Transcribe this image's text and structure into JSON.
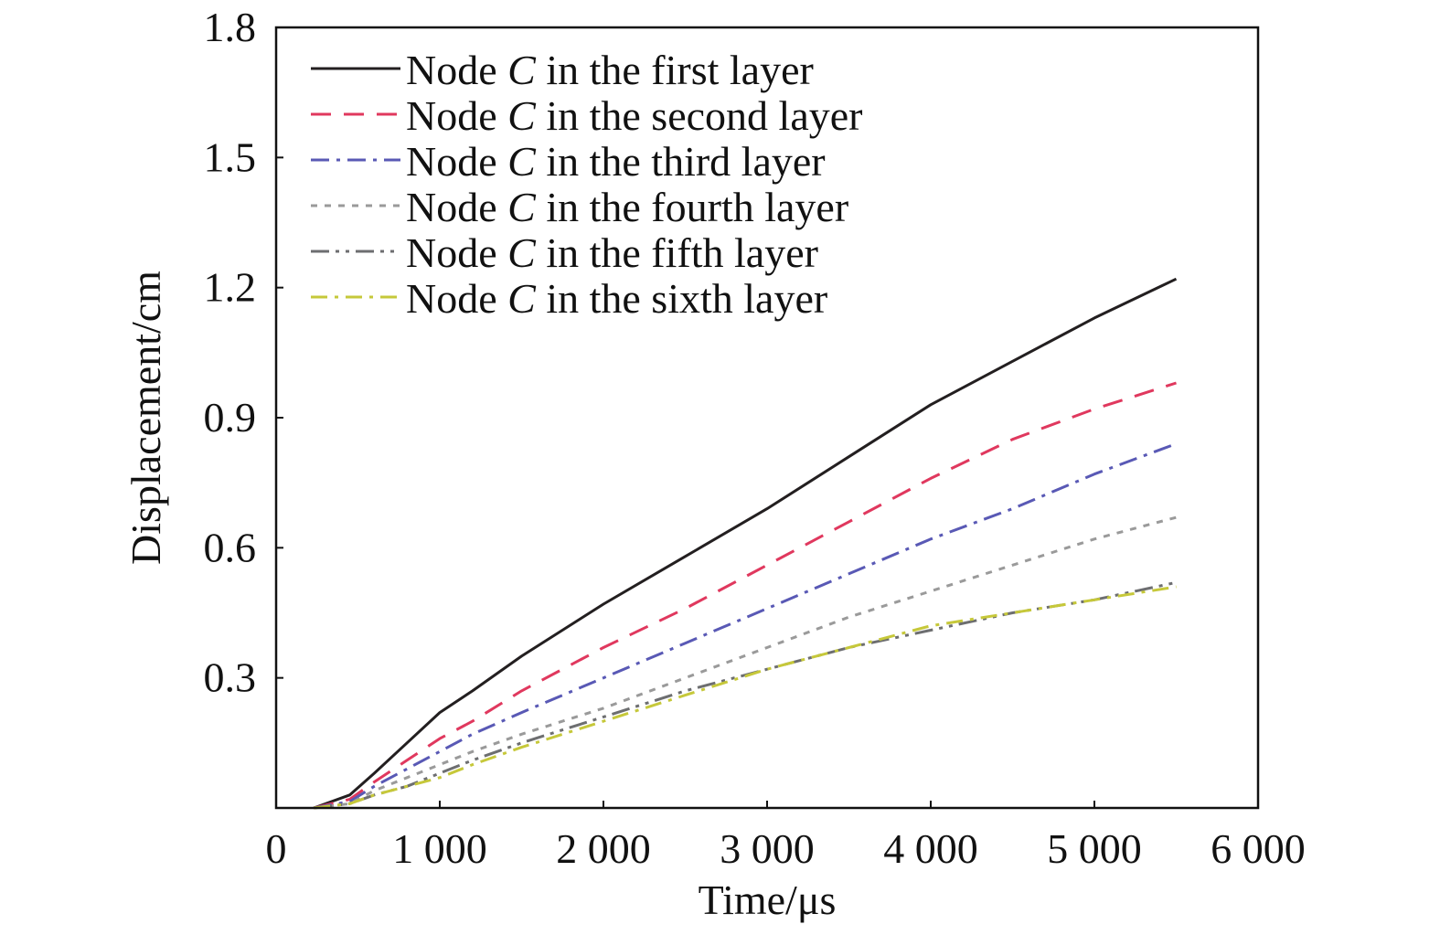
{
  "chart_data": {
    "type": "line",
    "title": "",
    "xlabel": "Time/μs",
    "ylabel": "Displacement/cm",
    "xlim": [
      0,
      6000
    ],
    "ylim": [
      0.0,
      1.8
    ],
    "x_ticks": [
      {
        "value": 0,
        "label": "0"
      },
      {
        "value": 1000,
        "label": "1 000"
      },
      {
        "value": 2000,
        "label": "2 000"
      },
      {
        "value": 3000,
        "label": "3 000"
      },
      {
        "value": 4000,
        "label": "4 000"
      },
      {
        "value": 5000,
        "label": "5 000"
      },
      {
        "value": 6000,
        "label": "6 000"
      }
    ],
    "y_ticks": [
      {
        "value": 0.3,
        "label": "0.3"
      },
      {
        "value": 0.6,
        "label": "0.6"
      },
      {
        "value": 0.9,
        "label": "0.9"
      },
      {
        "value": 1.2,
        "label": "1.2"
      },
      {
        "value": 1.5,
        "label": "1.5"
      },
      {
        "value": 1.8,
        "label": "1.8"
      }
    ],
    "grid": false,
    "legend_position": "top-left",
    "x": [
      230,
      450,
      600,
      800,
      1000,
      1200,
      1500,
      2000,
      2500,
      3000,
      3500,
      4000,
      4500,
      5000,
      5500
    ],
    "series": [
      {
        "name_prefix": "Node ",
        "name_italic": "C",
        "name_suffix": " in the first layer",
        "color": "#231f20",
        "dash": "",
        "values": [
          0.0,
          0.03,
          0.08,
          0.15,
          0.22,
          0.27,
          0.35,
          0.47,
          0.58,
          0.69,
          0.81,
          0.93,
          1.03,
          1.13,
          1.22
        ]
      },
      {
        "name_prefix": "Node ",
        "name_italic": "C",
        "name_suffix": " in the second layer",
        "color": "#e0385e",
        "dash": "22,14",
        "values": [
          0.0,
          0.02,
          0.06,
          0.11,
          0.16,
          0.2,
          0.27,
          0.37,
          0.46,
          0.56,
          0.66,
          0.76,
          0.85,
          0.92,
          0.98
        ]
      },
      {
        "name_prefix": "Node ",
        "name_italic": "C",
        "name_suffix": " in the third layer",
        "color": "#5959b5",
        "dash": "20,8,4,8",
        "values": [
          0.0,
          0.015,
          0.05,
          0.09,
          0.13,
          0.17,
          0.22,
          0.3,
          0.38,
          0.46,
          0.54,
          0.62,
          0.69,
          0.77,
          0.84
        ]
      },
      {
        "name_prefix": "Node ",
        "name_italic": "C",
        "name_suffix": " in the fourth layer",
        "color": "#9a9a9a",
        "dash": "7,8",
        "values": [
          0.0,
          0.01,
          0.04,
          0.07,
          0.1,
          0.13,
          0.17,
          0.23,
          0.3,
          0.37,
          0.44,
          0.5,
          0.56,
          0.62,
          0.67
        ]
      },
      {
        "name_prefix": "Node ",
        "name_italic": "C",
        "name_suffix": " in the fifth layer",
        "color": "#6d6e70",
        "dash": "20,7,4,7,4,7",
        "values": [
          0.0,
          0.01,
          0.03,
          0.05,
          0.08,
          0.11,
          0.15,
          0.21,
          0.27,
          0.32,
          0.37,
          0.41,
          0.45,
          0.48,
          0.52
        ]
      },
      {
        "name_prefix": "Node ",
        "name_italic": "C",
        "name_suffix": " in the sixth layer",
        "color": "#c6c83a",
        "dash": "18,8,4,8",
        "values": [
          0.0,
          0.01,
          0.03,
          0.05,
          0.07,
          0.1,
          0.14,
          0.2,
          0.26,
          0.32,
          0.37,
          0.42,
          0.45,
          0.48,
          0.51
        ]
      }
    ]
  }
}
